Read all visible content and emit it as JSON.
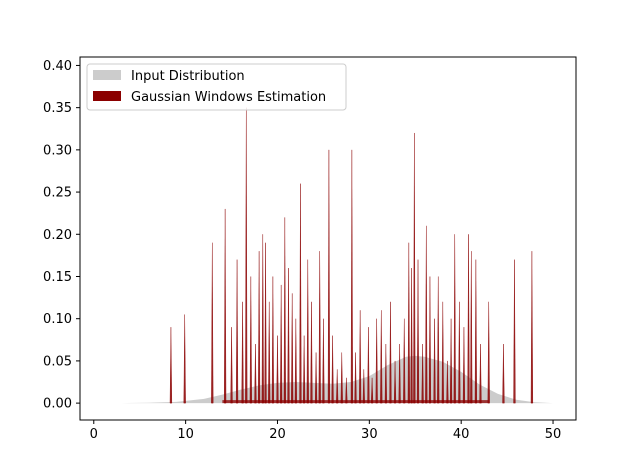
{
  "chart_data": {
    "type": "area",
    "title": "",
    "xlabel": "",
    "ylabel": "",
    "xlim": [
      -1.5,
      52.5
    ],
    "ylim": [
      -0.02,
      0.41
    ],
    "xticks": [
      0,
      10,
      20,
      30,
      40,
      50
    ],
    "yticks": [
      0.0,
      0.05,
      0.1,
      0.15,
      0.2,
      0.25,
      0.3,
      0.35,
      0.4
    ],
    "xtick_labels": [
      "0",
      "10",
      "20",
      "30",
      "40",
      "50"
    ],
    "ytick_labels": [
      "0.00",
      "0.05",
      "0.10",
      "0.15",
      "0.20",
      "0.25",
      "0.30",
      "0.35",
      "0.40"
    ],
    "legend": {
      "position": "upper-left",
      "entries": [
        {
          "label": "Input Distribution",
          "color": "#cccccc"
        },
        {
          "label": "Gaussian Windows Estimation",
          "color": "#8b0000"
        }
      ]
    },
    "series": [
      {
        "name": "Input Distribution",
        "color": "#cccccc",
        "kind": "area",
        "x": [
          3,
          6,
          9,
          12,
          14,
          16,
          18,
          20,
          22,
          24,
          26,
          28,
          30,
          32,
          34,
          35,
          36,
          38,
          40,
          42,
          44,
          46,
          48,
          50
        ],
        "y": [
          0.0,
          0.0005,
          0.0015,
          0.005,
          0.01,
          0.016,
          0.021,
          0.024,
          0.025,
          0.024,
          0.023,
          0.025,
          0.032,
          0.045,
          0.055,
          0.056,
          0.055,
          0.049,
          0.037,
          0.022,
          0.011,
          0.004,
          0.001,
          0.0
        ]
      },
      {
        "name": "Gaussian Windows Estimation",
        "color": "#8b0000",
        "kind": "spikes",
        "x": [
          8.4,
          9.9,
          12.9,
          14.3,
          15.0,
          15.6,
          16.2,
          16.6,
          17.1,
          17.6,
          18.0,
          18.4,
          18.7,
          19.1,
          19.5,
          20.0,
          20.4,
          20.8,
          21.2,
          21.6,
          22.0,
          22.5,
          22.9,
          23.3,
          23.7,
          24.2,
          24.6,
          25.0,
          25.6,
          26.0,
          26.5,
          27.0,
          27.5,
          28.1,
          28.5,
          29.0,
          29.4,
          29.9,
          30.3,
          30.8,
          31.3,
          31.8,
          32.3,
          32.8,
          33.3,
          33.8,
          34.3,
          34.6,
          34.9,
          35.3,
          35.8,
          36.2,
          36.6,
          37.1,
          37.5,
          38.0,
          38.5,
          38.9,
          39.3,
          39.8,
          40.3,
          40.8,
          41.1,
          41.6,
          42.1,
          43.0,
          44.6,
          45.8,
          47.7
        ],
        "y": [
          0.09,
          0.105,
          0.19,
          0.23,
          0.09,
          0.17,
          0.12,
          0.35,
          0.15,
          0.07,
          0.18,
          0.2,
          0.19,
          0.12,
          0.15,
          0.08,
          0.14,
          0.22,
          0.16,
          0.13,
          0.1,
          0.26,
          0.08,
          0.17,
          0.12,
          0.06,
          0.18,
          0.1,
          0.3,
          0.08,
          0.04,
          0.06,
          0.03,
          0.3,
          0.06,
          0.11,
          0.04,
          0.09,
          0.03,
          0.1,
          0.11,
          0.07,
          0.12,
          0.05,
          0.07,
          0.1,
          0.19,
          0.16,
          0.32,
          0.17,
          0.07,
          0.21,
          0.15,
          0.1,
          0.15,
          0.12,
          0.05,
          0.1,
          0.2,
          0.12,
          0.09,
          0.2,
          0.18,
          0.17,
          0.07,
          0.12,
          0.07,
          0.17,
          0.18
        ]
      }
    ]
  }
}
